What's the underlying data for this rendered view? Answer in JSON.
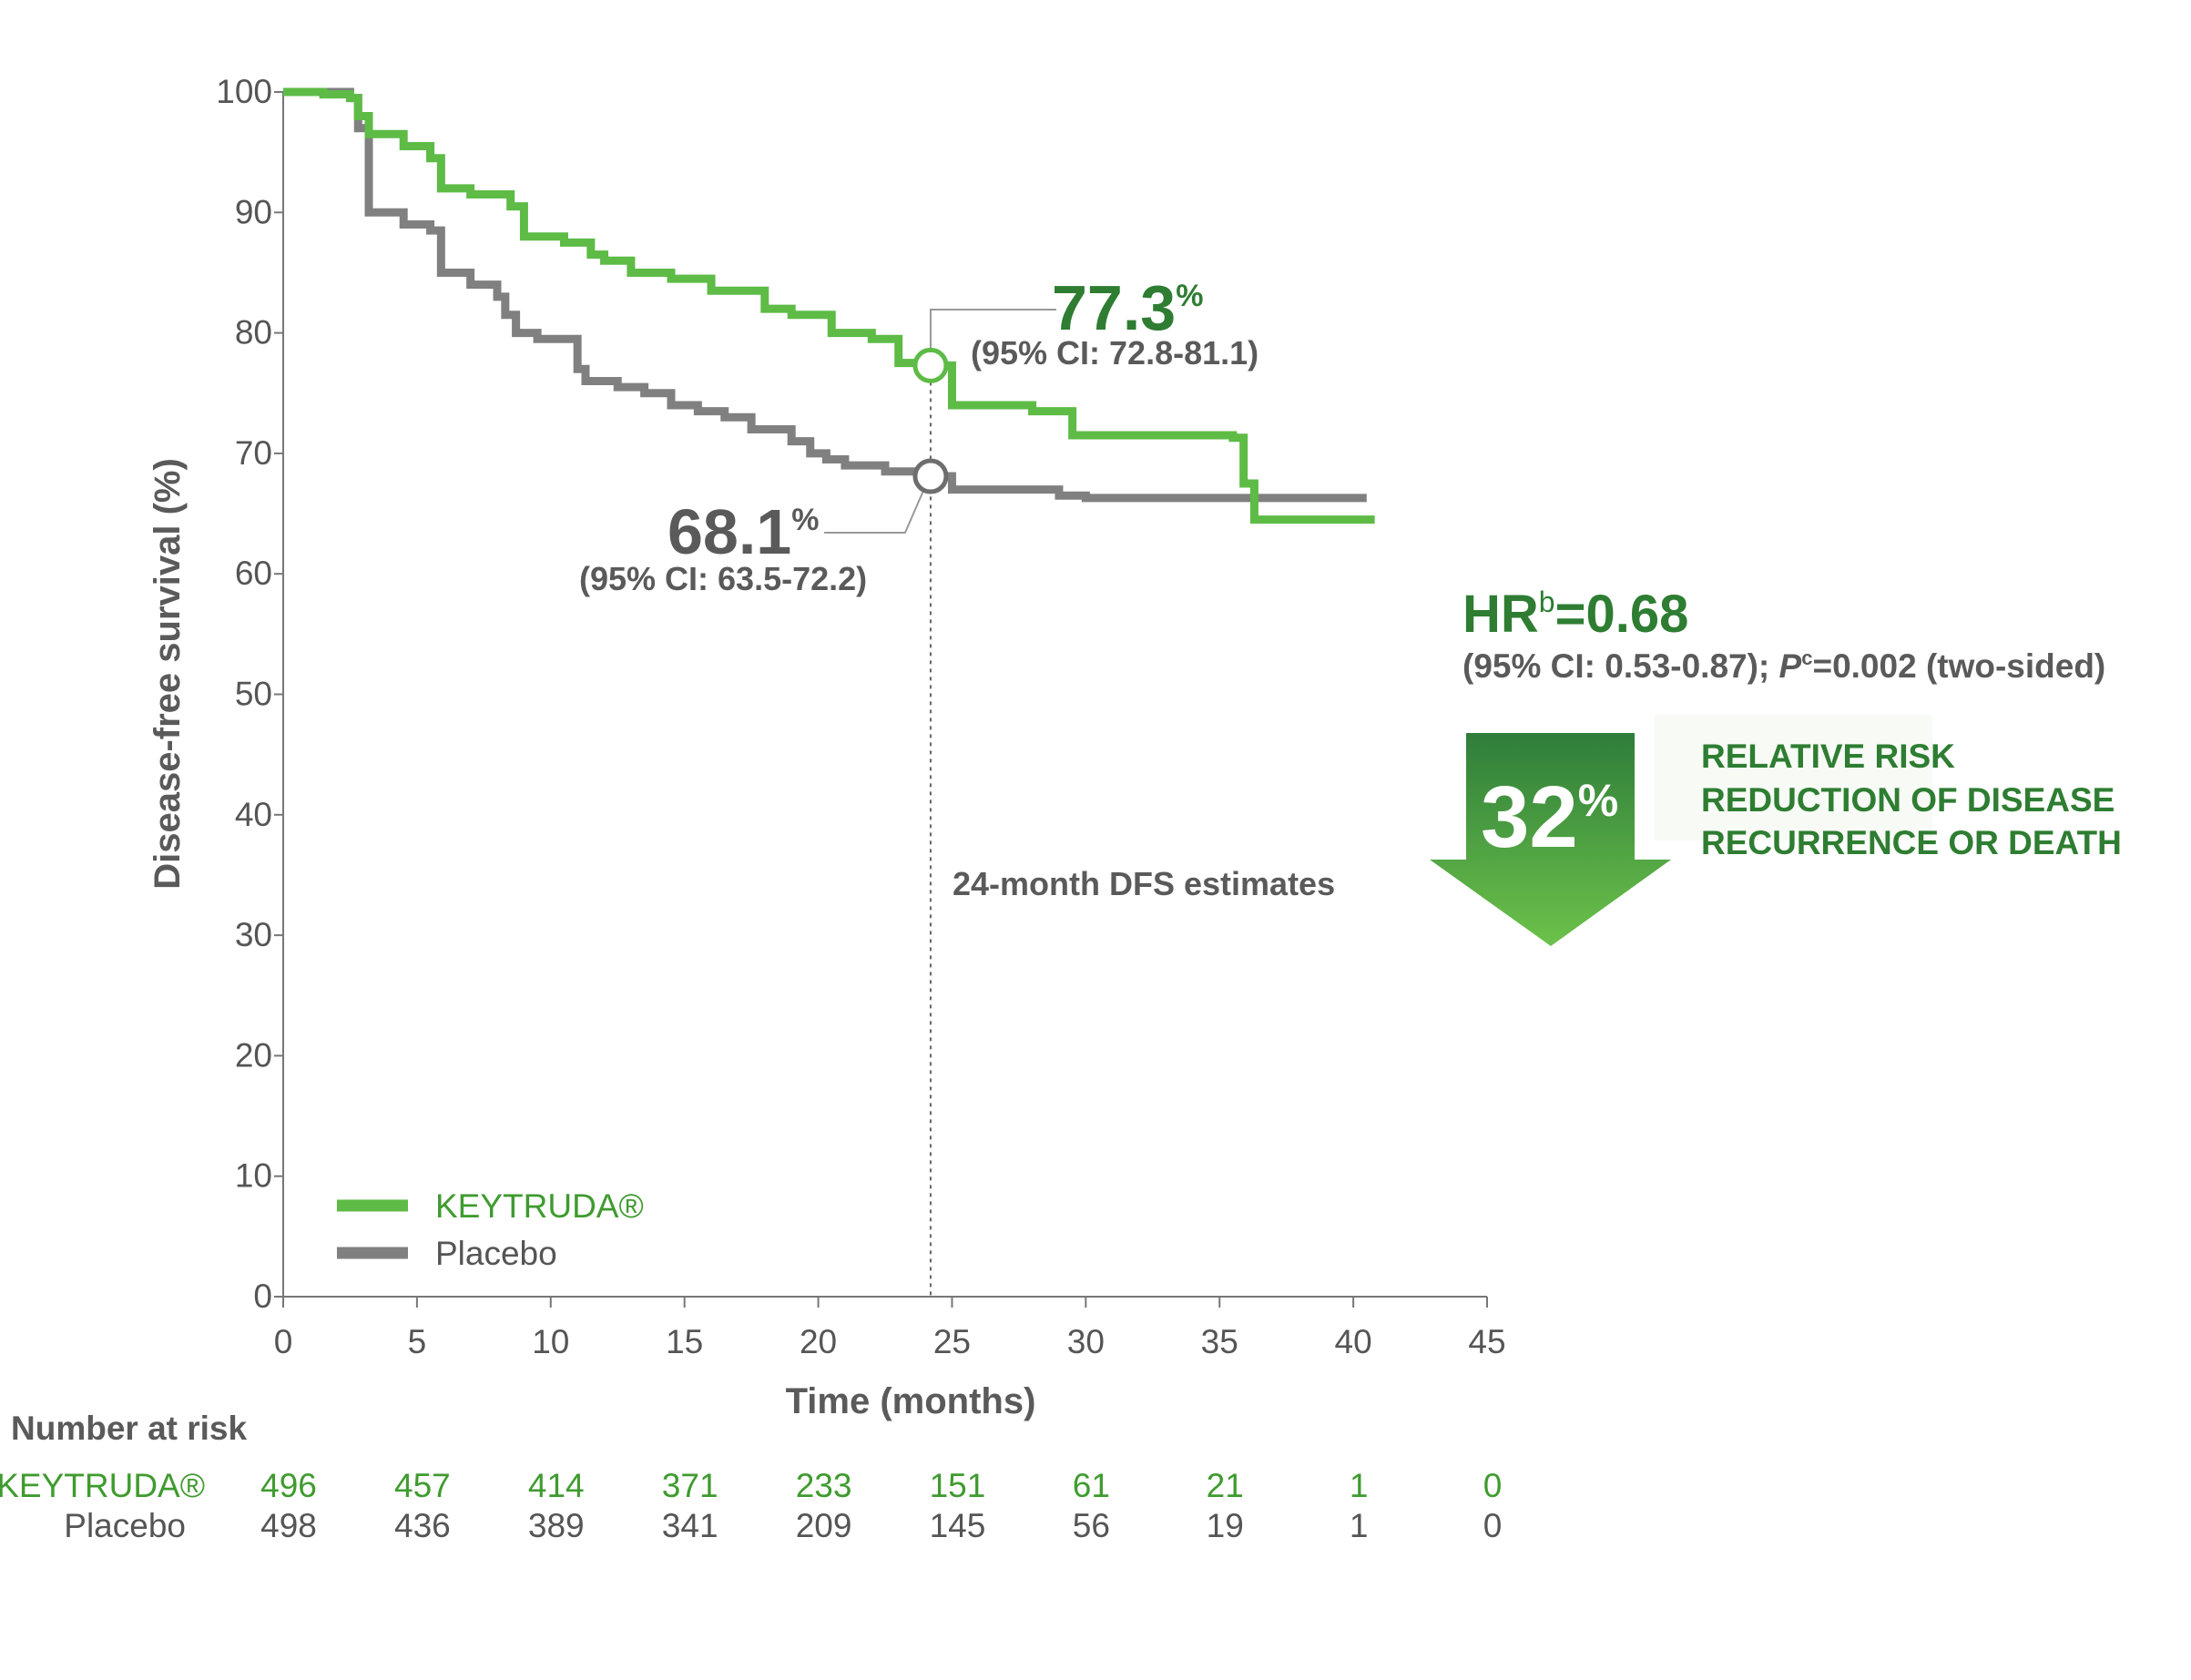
{
  "colors": {
    "keytruda": "#5dbb46",
    "placebo": "#808080",
    "dark_green": "#2e7d32",
    "axis": "#777777"
  },
  "chart_data": {
    "type": "line",
    "step": true,
    "xlabel": "Time (months)",
    "ylabel": "Disease-free survival (%)",
    "xlim": [
      0,
      45
    ],
    "ylim": [
      0,
      100
    ],
    "xticks": [
      "0",
      "5",
      "10",
      "15",
      "20",
      "25",
      "30",
      "35",
      "40",
      "45"
    ],
    "yticks": [
      "0",
      "10",
      "20",
      "30",
      "40",
      "50",
      "60",
      "70",
      "80",
      "90",
      "100"
    ],
    "legend_position": "bottom-left",
    "series": [
      {
        "name": "KEYTRUDA®",
        "color": "#5dbb46",
        "x": [
          0,
          1.5,
          2.5,
          2.8,
          3.2,
          4.5,
          5.5,
          5.9,
          7,
          8.5,
          9,
          10.5,
          11.5,
          12,
          13,
          14.5,
          16,
          18,
          19,
          20.5,
          22,
          23,
          24.2,
          25,
          28,
          29.5,
          35.5,
          35.9,
          36.3,
          40.8
        ],
        "y": [
          100,
          99.8,
          99.5,
          98,
          96.5,
          95.5,
          94.5,
          92,
          91.5,
          90.5,
          88,
          87.5,
          86.5,
          86,
          85,
          84.5,
          83.5,
          82,
          81.5,
          80,
          79.5,
          77.5,
          77.3,
          74,
          73.5,
          71.5,
          71.3,
          67.5,
          64.5,
          64.5
        ]
      },
      {
        "name": "Placebo",
        "color": "#808080",
        "x": [
          0,
          2.5,
          2.8,
          3.2,
          4.5,
          5.5,
          5.9,
          7,
          8,
          8.3,
          8.7,
          9.5,
          11,
          11.3,
          12.5,
          13.5,
          14.5,
          15.5,
          16.5,
          17.5,
          19,
          19.7,
          20.3,
          21,
          22.5,
          24.2,
          25,
          29,
          30,
          40.5
        ],
        "y": [
          100,
          99.5,
          97,
          90,
          89,
          88.5,
          85,
          84,
          83,
          81.5,
          80,
          79.5,
          77,
          76,
          75.5,
          75,
          74,
          73.5,
          73,
          72,
          71,
          70,
          69.5,
          69,
          68.5,
          68.1,
          67,
          66.5,
          66.3,
          66.3
        ]
      }
    ],
    "estimates": [
      {
        "value": "77.3",
        "pct": "%",
        "ci": "(95% CI: 72.8-81.1)",
        "x": 24.2,
        "y": 77.3
      },
      {
        "value": "68.1",
        "pct": "%",
        "ci": "(95% CI: 63.5-72.2)",
        "x": 24.2,
        "y": 68.1
      }
    ],
    "annotation": "24-month DFS estimates",
    "annotation_x": 24.2
  },
  "hr": {
    "main_prefix": "HR",
    "main_sup": "b",
    "main_value": "=0.68",
    "ci_prefix": "(95% CI: 0.53-0.87); ",
    "ci_p": "P",
    "ci_sup": "c",
    "ci_suffix": "=0.002 (two-sided)"
  },
  "reduction": {
    "value": "32",
    "pct": "%",
    "lines": [
      "RELATIVE RISK",
      "REDUCTION OF DISEASE",
      "RECURRENCE OR DEATH"
    ]
  },
  "risk_table": {
    "header": "Number at risk",
    "rows": [
      {
        "label": "KEYTRUDA®",
        "color": "#3f9b2f",
        "values": [
          "496",
          "457",
          "414",
          "371",
          "233",
          "151",
          "61",
          "21",
          "1",
          "0"
        ]
      },
      {
        "label": "Placebo",
        "color": "#555555",
        "values": [
          "498",
          "436",
          "389",
          "341",
          "209",
          "145",
          "56",
          "19",
          "1",
          "0"
        ]
      }
    ]
  }
}
